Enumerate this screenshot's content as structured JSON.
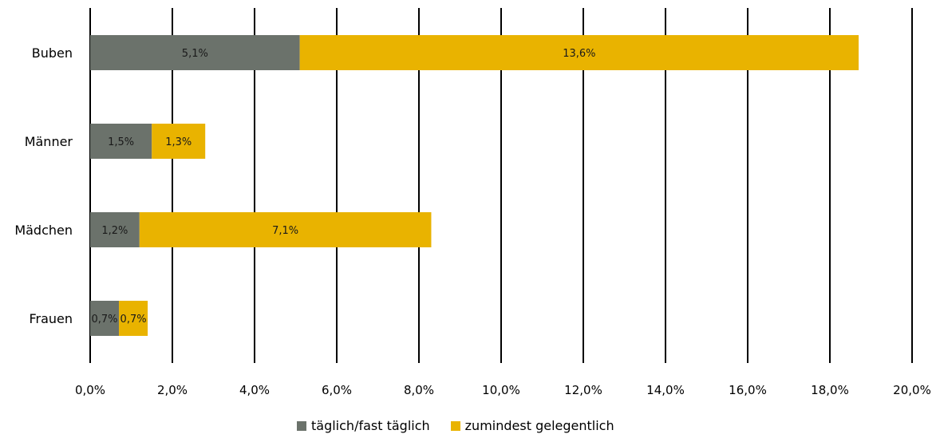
{
  "chart_data": {
    "type": "bar",
    "orientation": "horizontal",
    "stacked": true,
    "categories": [
      "Buben",
      "Männer",
      "Mädchen",
      "Frauen"
    ],
    "series": [
      {
        "name": "täglich/fast täglich",
        "values": [
          5.1,
          1.5,
          1.2,
          0.7
        ],
        "labels": [
          "5,1%",
          "1,5%",
          "1,2%",
          "0,7%"
        ],
        "color": "#6b726b"
      },
      {
        "name": "zumindest gelegentlich",
        "values": [
          13.6,
          1.3,
          7.1,
          0.7
        ],
        "labels": [
          "13,6%",
          "1,3%",
          "7,1%",
          "0,7%"
        ],
        "color": "#e9b300"
      }
    ],
    "xlim": [
      0,
      20
    ],
    "xticks": [
      0,
      2,
      4,
      6,
      8,
      10,
      12,
      14,
      16,
      18,
      20
    ],
    "xtick_labels": [
      "0,0%",
      "2,0%",
      "4,0%",
      "6,0%",
      "8,0%",
      "10,0%",
      "12,0%",
      "14,0%",
      "16,0%",
      "18,0%",
      "20,0%"
    ],
    "grid": "vertical",
    "legend_position": "bottom"
  }
}
